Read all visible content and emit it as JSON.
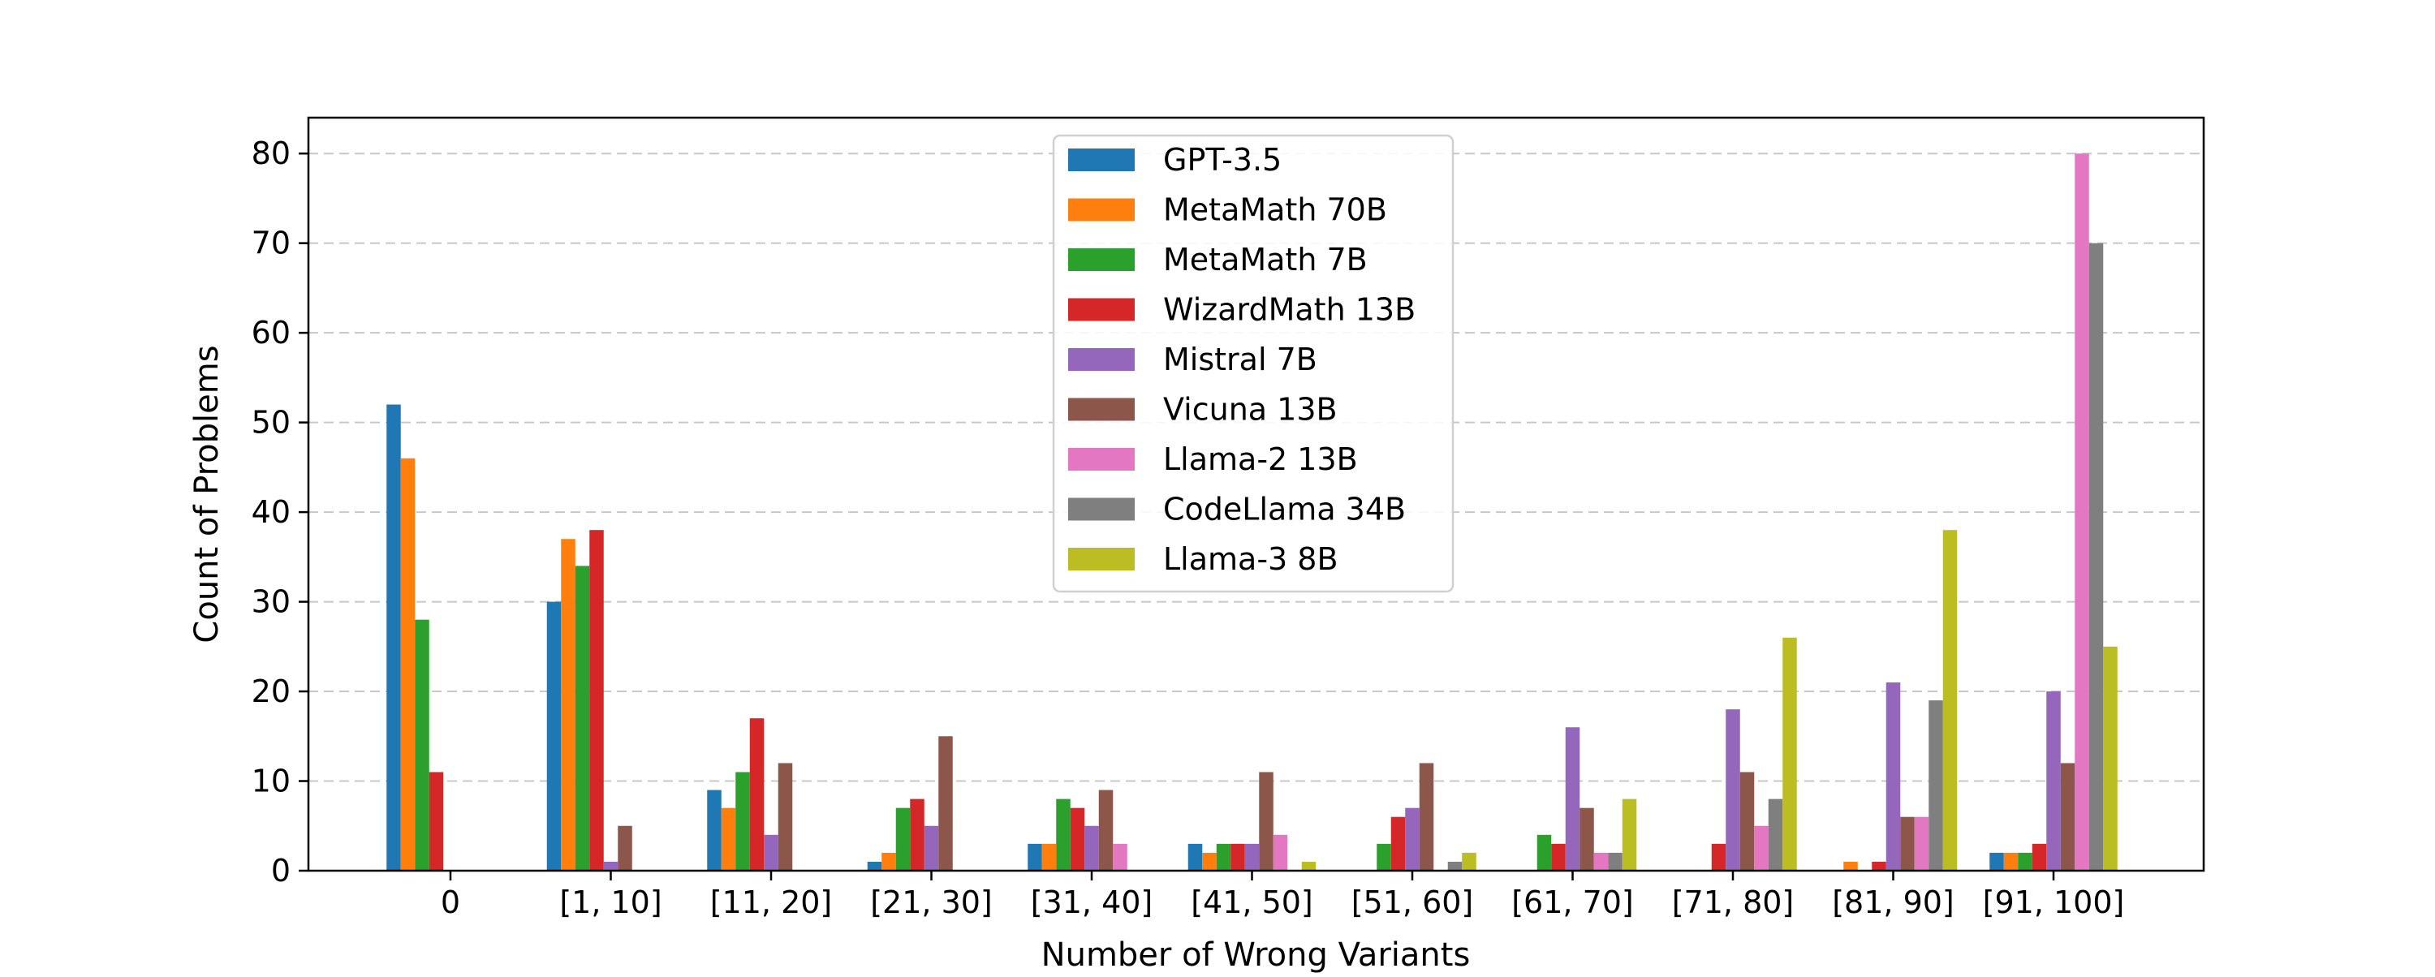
{
  "chart_data": {
    "type": "bar",
    "title": "",
    "xlabel": "Number of Wrong Variants",
    "ylabel": "Count of Problems",
    "ylim": [
      0,
      84
    ],
    "yticks": [
      0,
      10,
      20,
      30,
      40,
      50,
      60,
      70,
      80
    ],
    "grid": "y-dashed",
    "legend_position": "top-center",
    "categories": [
      "0",
      "[1, 10]",
      "[11, 20]",
      "[21, 30]",
      "[31, 40]",
      "[41, 50]",
      "[51, 60]",
      "[61, 70]",
      "[71, 80]",
      "[81, 90]",
      "[91, 100]"
    ],
    "series": [
      {
        "name": "GPT-3.5",
        "color": "#1f77b4",
        "values": [
          52,
          30,
          9,
          1,
          3,
          3,
          0,
          0,
          0,
          0,
          2
        ]
      },
      {
        "name": "MetaMath 70B",
        "color": "#ff7f0e",
        "values": [
          46,
          37,
          7,
          2,
          3,
          2,
          0,
          0,
          0,
          1,
          2
        ]
      },
      {
        "name": "MetaMath 7B",
        "color": "#2ca02c",
        "values": [
          28,
          34,
          11,
          7,
          8,
          3,
          3,
          4,
          0,
          0,
          2
        ]
      },
      {
        "name": "WizardMath 13B",
        "color": "#d62728",
        "values": [
          11,
          38,
          17,
          8,
          7,
          3,
          6,
          3,
          3,
          1,
          3
        ]
      },
      {
        "name": "Mistral 7B",
        "color": "#9467bd",
        "values": [
          0,
          1,
          4,
          5,
          5,
          3,
          7,
          16,
          18,
          21,
          20
        ]
      },
      {
        "name": "Vicuna 13B",
        "color": "#8c564b",
        "values": [
          0,
          5,
          12,
          15,
          9,
          11,
          12,
          7,
          11,
          6,
          12
        ]
      },
      {
        "name": "Llama-2 13B",
        "color": "#e377c2",
        "values": [
          0,
          0,
          0,
          0,
          3,
          4,
          0,
          2,
          5,
          6,
          80
        ]
      },
      {
        "name": "CodeLlama 34B",
        "color": "#7f7f7f",
        "values": [
          0,
          0,
          0,
          0,
          0,
          0,
          1,
          2,
          8,
          19,
          70
        ]
      },
      {
        "name": "Llama-3 8B",
        "color": "#bcbd22",
        "values": [
          0,
          0,
          0,
          0,
          0,
          1,
          2,
          8,
          26,
          38,
          25
        ]
      }
    ]
  }
}
